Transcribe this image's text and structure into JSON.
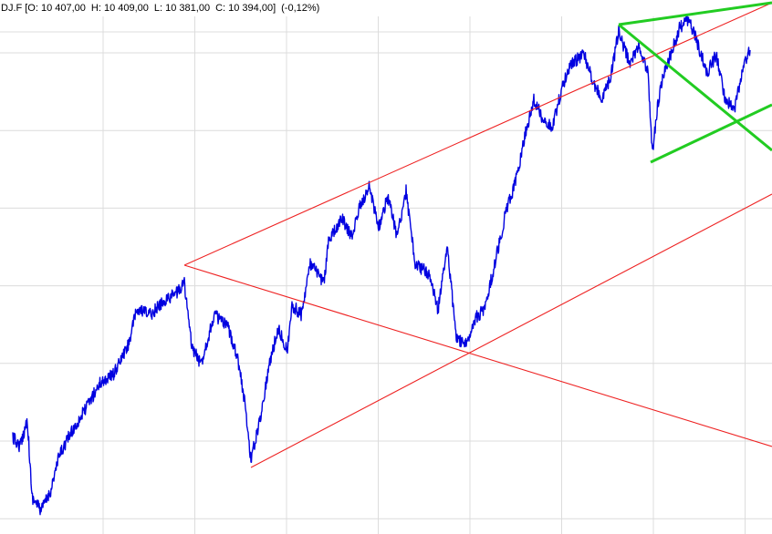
{
  "header": {
    "parts": [
      "DJ.F",
      "[O: 10 407,00",
      "H: 10 409,00",
      "L: 10 381,00",
      "C: 10 394,00]",
      "(-0,12%)"
    ]
  }
}
